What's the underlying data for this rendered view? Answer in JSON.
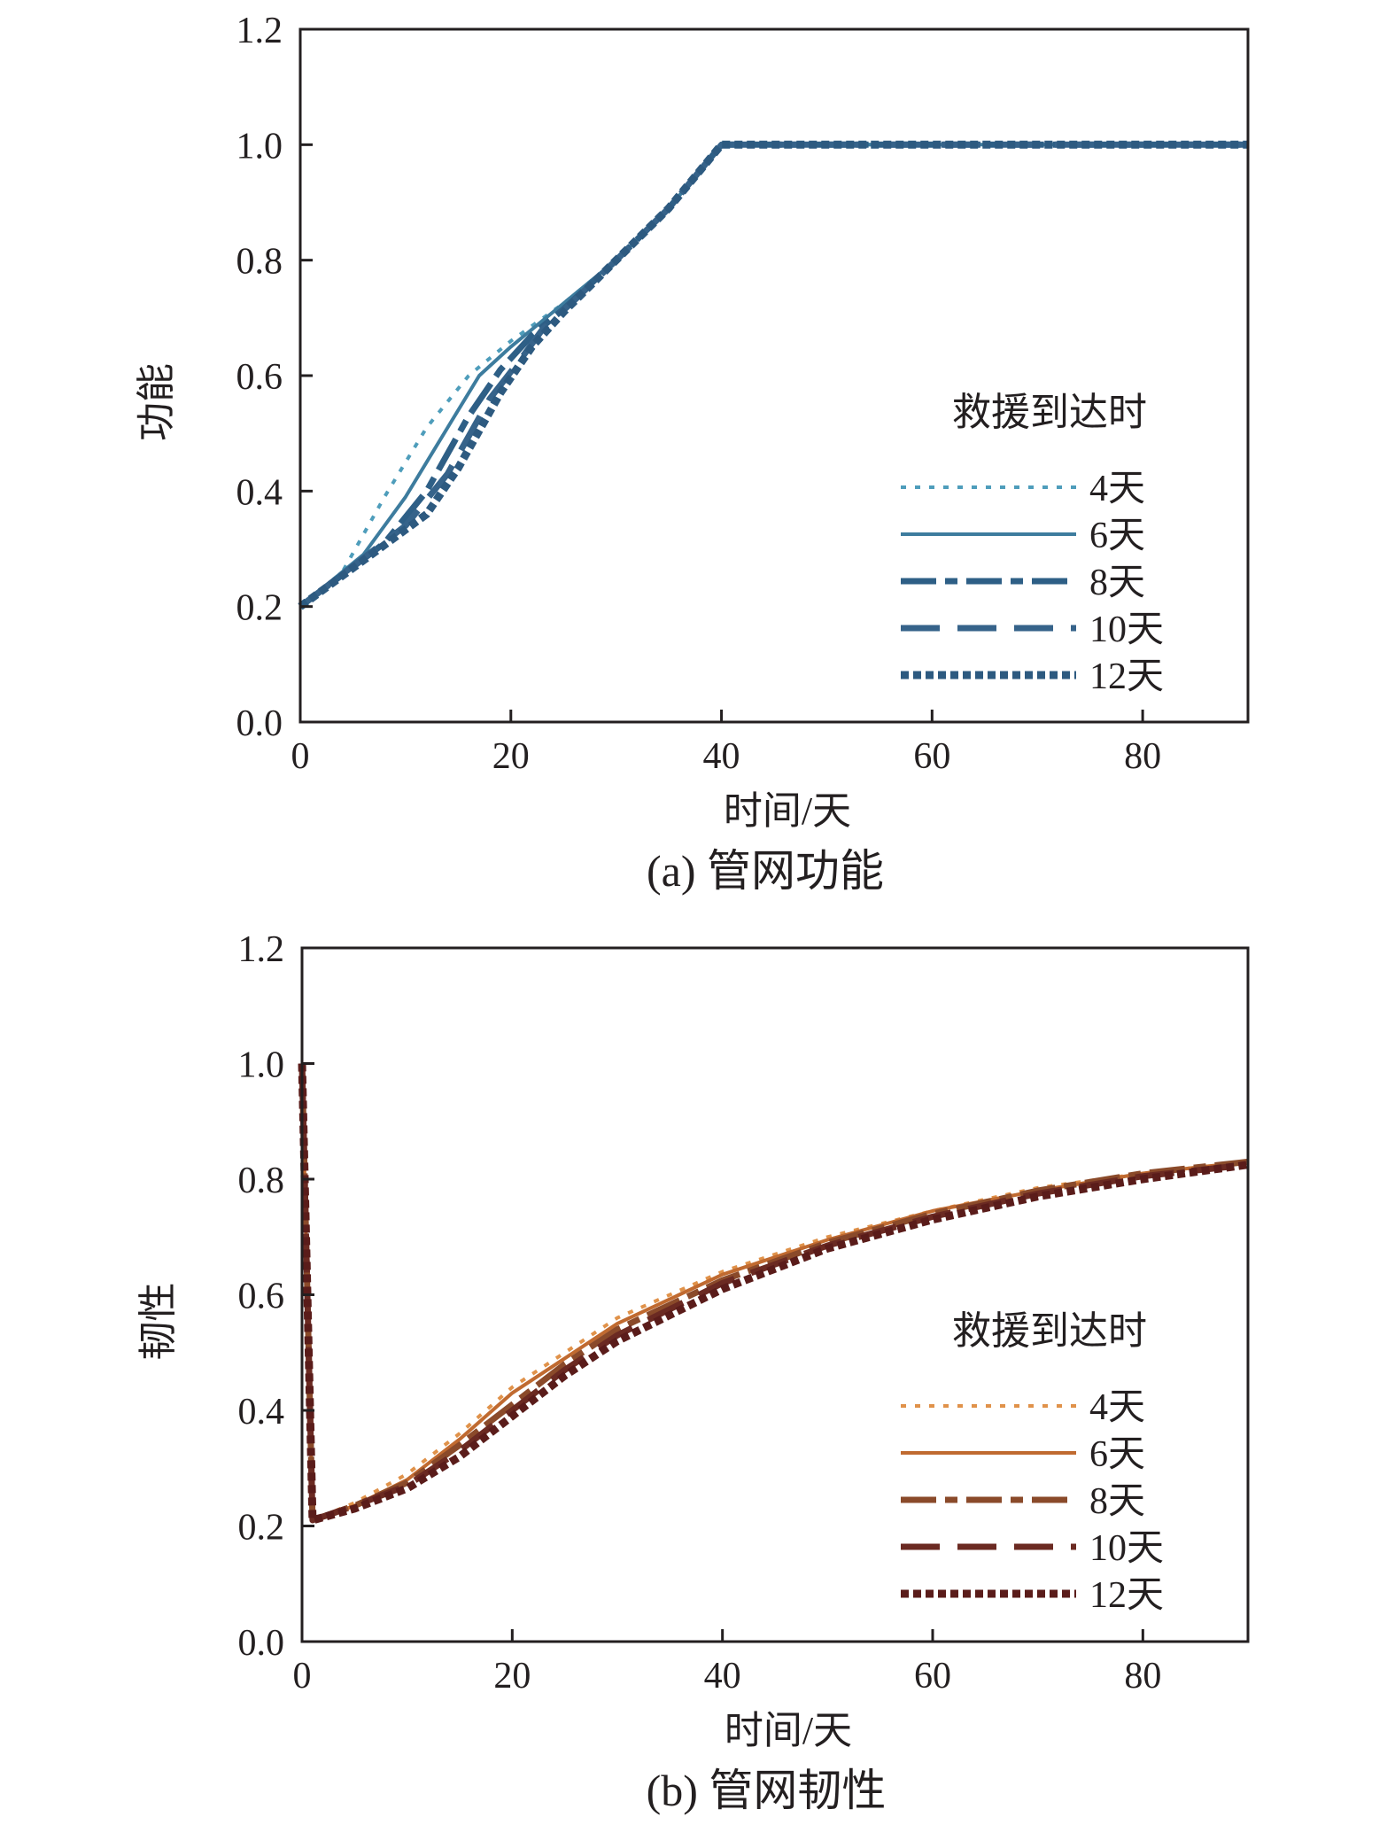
{
  "chart_data": [
    {
      "type": "line",
      "caption": "(a) 管网功能",
      "xlabel": "时间/天",
      "ylabel": "功能",
      "xlim": [
        0,
        90
      ],
      "ylim": [
        0,
        1.2
      ],
      "x_ticks": [
        "0",
        "20",
        "40",
        "60",
        "80"
      ],
      "y_ticks": [
        "0.0",
        "0.2",
        "0.4",
        "0.6",
        "0.8",
        "1.0",
        "1.2"
      ],
      "legend_title": "救援到达时",
      "legend_position": "lower-right",
      "series": [
        {
          "name": "4天",
          "color": "#4e9dbb",
          "style": "dotted",
          "points": [
            [
              0,
              0.2
            ],
            [
              4,
              0.26
            ],
            [
              8,
              0.39
            ],
            [
              12,
              0.51
            ],
            [
              16,
              0.6
            ],
            [
              20,
              0.66
            ],
            [
              25,
              0.725
            ],
            [
              30,
              0.8
            ],
            [
              35,
              0.89
            ],
            [
              40,
              1.0
            ],
            [
              90,
              1.0
            ]
          ]
        },
        {
          "name": "6天",
          "color": "#3d7c9e",
          "style": "solid",
          "points": [
            [
              0,
              0.2
            ],
            [
              6,
              0.29
            ],
            [
              10,
              0.39
            ],
            [
              14,
              0.51
            ],
            [
              17,
              0.6
            ],
            [
              20,
              0.65
            ],
            [
              25,
              0.725
            ],
            [
              30,
              0.8
            ],
            [
              35,
              0.89
            ],
            [
              40,
              1.0
            ],
            [
              90,
              1.0
            ]
          ]
        },
        {
          "name": "8天",
          "color": "#2e5f86",
          "style": "dashdot",
          "points": [
            [
              0,
              0.2
            ],
            [
              8,
              0.31
            ],
            [
              12,
              0.4
            ],
            [
              16,
              0.53
            ],
            [
              19,
              0.61
            ],
            [
              22,
              0.67
            ],
            [
              25,
              0.715
            ],
            [
              30,
              0.8
            ],
            [
              35,
              0.89
            ],
            [
              40,
              1.0
            ],
            [
              90,
              1.0
            ]
          ]
        },
        {
          "name": "10天",
          "color": "#36638a",
          "style": "dashed",
          "points": [
            [
              0,
              0.2
            ],
            [
              10,
              0.34
            ],
            [
              14,
              0.43
            ],
            [
              18,
              0.56
            ],
            [
              21,
              0.63
            ],
            [
              23,
              0.68
            ],
            [
              26,
              0.73
            ],
            [
              30,
              0.8
            ],
            [
              35,
              0.89
            ],
            [
              40,
              1.0
            ],
            [
              90,
              1.0
            ]
          ]
        },
        {
          "name": "12天",
          "color": "#2d5a80",
          "style": "dense-dotted",
          "points": [
            [
              0,
              0.2
            ],
            [
              12,
              0.36
            ],
            [
              15,
              0.44
            ],
            [
              19,
              0.57
            ],
            [
              22,
              0.65
            ],
            [
              25,
              0.71
            ],
            [
              30,
              0.8
            ],
            [
              35,
              0.89
            ],
            [
              40,
              1.0
            ],
            [
              90,
              1.0
            ]
          ]
        }
      ]
    },
    {
      "type": "line",
      "caption": "(b) 管网韧性",
      "xlabel": "时间/天",
      "ylabel": "韧性",
      "xlim": [
        0,
        90
      ],
      "ylim": [
        0,
        1.2
      ],
      "x_ticks": [
        "0",
        "20",
        "40",
        "60",
        "80"
      ],
      "y_ticks": [
        "0.0",
        "0.2",
        "0.4",
        "0.6",
        "0.8",
        "1.0",
        "1.2"
      ],
      "legend_title": "救援到达时",
      "legend_position": "lower-right",
      "series": [
        {
          "name": "4天",
          "color": "#e0924a",
          "style": "dotted",
          "points": [
            [
              0,
              1.0
            ],
            [
              1,
              0.21
            ],
            [
              5,
              0.24
            ],
            [
              10,
              0.29
            ],
            [
              15,
              0.36
            ],
            [
              20,
              0.44
            ],
            [
              25,
              0.5
            ],
            [
              30,
              0.56
            ],
            [
              40,
              0.64
            ],
            [
              50,
              0.7
            ],
            [
              60,
              0.745
            ],
            [
              70,
              0.785
            ],
            [
              80,
              0.81
            ],
            [
              90,
              0.83
            ]
          ]
        },
        {
          "name": "6天",
          "color": "#c06a30",
          "style": "solid",
          "points": [
            [
              0,
              1.0
            ],
            [
              1,
              0.21
            ],
            [
              5,
              0.235
            ],
            [
              10,
              0.28
            ],
            [
              15,
              0.35
            ],
            [
              20,
              0.43
            ],
            [
              25,
              0.49
            ],
            [
              30,
              0.55
            ],
            [
              40,
              0.635
            ],
            [
              50,
              0.695
            ],
            [
              60,
              0.745
            ],
            [
              70,
              0.78
            ],
            [
              80,
              0.81
            ],
            [
              90,
              0.83
            ]
          ]
        },
        {
          "name": "8天",
          "color": "#8a4a2a",
          "style": "dashdot",
          "points": [
            [
              0,
              1.0
            ],
            [
              1,
              0.21
            ],
            [
              5,
              0.235
            ],
            [
              10,
              0.275
            ],
            [
              15,
              0.34
            ],
            [
              20,
              0.41
            ],
            [
              25,
              0.48
            ],
            [
              30,
              0.54
            ],
            [
              40,
              0.625
            ],
            [
              50,
              0.69
            ],
            [
              60,
              0.74
            ],
            [
              70,
              0.78
            ],
            [
              80,
              0.81
            ],
            [
              90,
              0.83
            ]
          ]
        },
        {
          "name": "10天",
          "color": "#6b2a22",
          "style": "dashed",
          "points": [
            [
              0,
              1.0
            ],
            [
              1,
              0.21
            ],
            [
              5,
              0.235
            ],
            [
              10,
              0.27
            ],
            [
              15,
              0.33
            ],
            [
              20,
              0.4
            ],
            [
              25,
              0.47
            ],
            [
              30,
              0.53
            ],
            [
              40,
              0.62
            ],
            [
              50,
              0.685
            ],
            [
              60,
              0.735
            ],
            [
              70,
              0.775
            ],
            [
              80,
              0.805
            ],
            [
              90,
              0.825
            ]
          ]
        },
        {
          "name": "12天",
          "color": "#5a1c1a",
          "style": "dense-dotted",
          "points": [
            [
              0,
              1.0
            ],
            [
              1,
              0.21
            ],
            [
              5,
              0.23
            ],
            [
              10,
              0.265
            ],
            [
              15,
              0.32
            ],
            [
              20,
              0.39
            ],
            [
              25,
              0.46
            ],
            [
              30,
              0.52
            ],
            [
              40,
              0.61
            ],
            [
              50,
              0.68
            ],
            [
              60,
              0.73
            ],
            [
              70,
              0.77
            ],
            [
              80,
              0.8
            ],
            [
              90,
              0.825
            ]
          ]
        }
      ]
    }
  ]
}
